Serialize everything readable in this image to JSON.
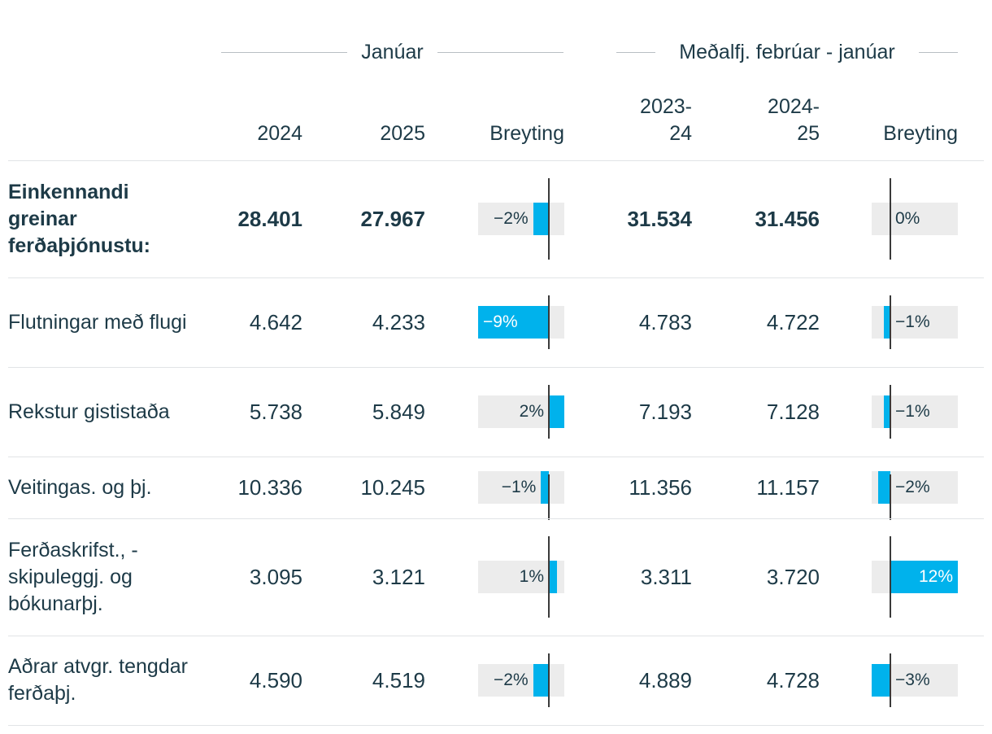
{
  "header": {
    "group_left": "Janúar",
    "group_right": "Meðalfj. febrúar - janúar",
    "columns": {
      "c2024": "2024",
      "c2025": "2025",
      "change_left": "Breyting",
      "c2023_24_line1": "2023-",
      "c2023_24_line2": "24",
      "c2024_25_line1": "2024-",
      "c2024_25_line2": "25",
      "change_right": "Breyting"
    }
  },
  "colors": {
    "bar": "#00b2ec",
    "bar_background": "#ececec",
    "text": "#1d3a47"
  },
  "chart_data": {
    "type": "table",
    "rows": [
      {
        "label": "Einkennandi greinar ferðaþjónustu:",
        "bold": true,
        "v2024": "28.401",
        "v2025": "27.967",
        "change_jan": -2,
        "change_jan_label": "−2%",
        "v2023_24": "31.534",
        "v2024_25": "31.456",
        "change_avg": 0,
        "change_avg_label": "0%"
      },
      {
        "label": "Flutningar með flugi",
        "bold": false,
        "v2024": "4.642",
        "v2025": "4.233",
        "change_jan": -9,
        "change_jan_label": "−9%",
        "v2023_24": "4.783",
        "v2024_25": "4.722",
        "change_avg": -1,
        "change_avg_label": "−1%"
      },
      {
        "label": "Rekstur gististaða",
        "bold": false,
        "v2024": "5.738",
        "v2025": "5.849",
        "change_jan": 2,
        "change_jan_label": "2%",
        "v2023_24": "7.193",
        "v2024_25": "7.128",
        "change_avg": -1,
        "change_avg_label": "−1%"
      },
      {
        "label": "Veitingas. og þj.",
        "bold": false,
        "v2024": "10.336",
        "v2025": "10.245",
        "change_jan": -1,
        "change_jan_label": "−1%",
        "v2023_24": "11.356",
        "v2024_25": "11.157",
        "change_avg": -2,
        "change_avg_label": "−2%"
      },
      {
        "label": "Ferðaskrifst., -skipuleggj. og bókunarþj.",
        "bold": false,
        "v2024": "3.095",
        "v2025": "3.121",
        "change_jan": 1,
        "change_jan_label": "1%",
        "v2023_24": "3.311",
        "v2024_25": "3.720",
        "change_avg": 12,
        "change_avg_label": "12%"
      },
      {
        "label": "Aðrar atvgr. tengdar ferðaþj.",
        "bold": false,
        "v2024": "4.590",
        "v2025": "4.519",
        "change_jan": -2,
        "change_jan_label": "−2%",
        "v2023_24": "4.889",
        "v2024_25": "4.728",
        "change_avg": -3,
        "change_avg_label": "−3%"
      }
    ],
    "change_jan_range": [
      -9,
      2
    ],
    "change_avg_range": [
      -3,
      12
    ]
  }
}
